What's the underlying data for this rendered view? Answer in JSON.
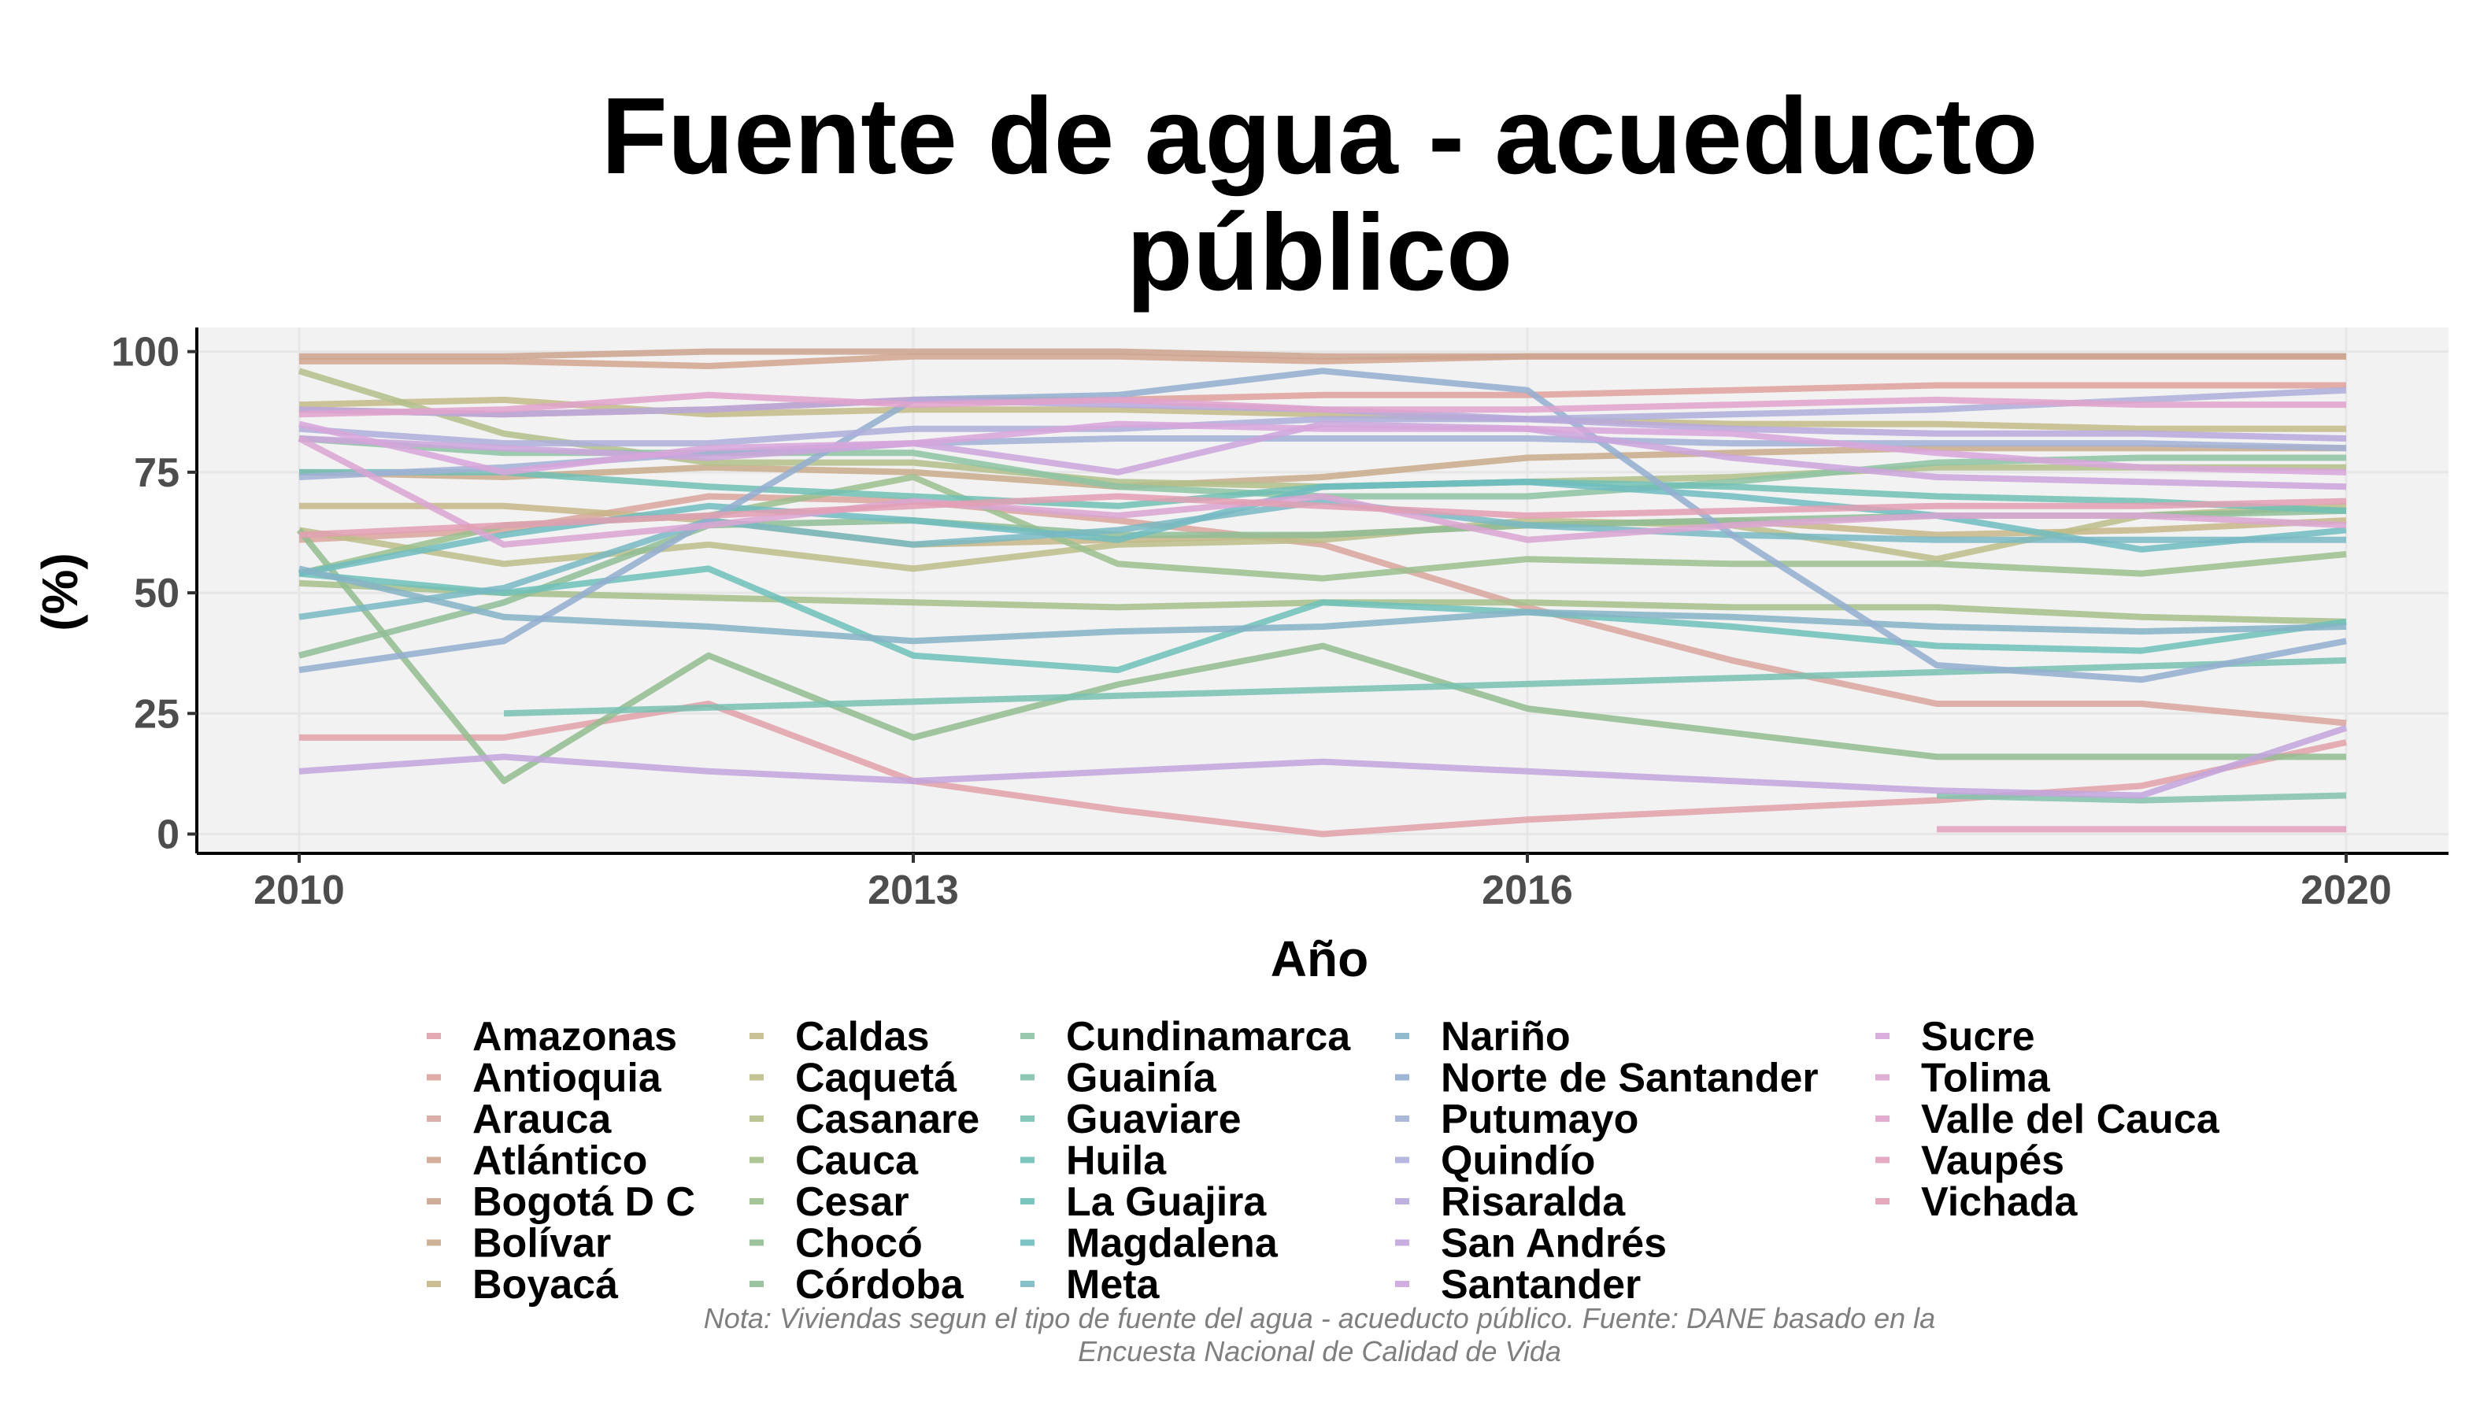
{
  "chart_data": {
    "type": "line",
    "title": "Fuente de agua - acueducto público",
    "title_lines": [
      "Fuente de agua - acueducto",
      "público"
    ],
    "xlabel": "Año",
    "ylabel": "(%)",
    "xticks": [
      2010,
      2013,
      2016,
      2020
    ],
    "yticks": [
      0,
      25,
      50,
      75,
      100
    ],
    "xlim": [
      2009.5,
      2020.5
    ],
    "ylim": [
      -4,
      105
    ],
    "grid": true,
    "legend_placement": "bottom",
    "caption_lines": [
      "Nota: Viviendas segun el tipo de fuente del agua - acueducto público. Fuente: DANE basado en la",
      "Encuesta Nacional de Calidad de Vida"
    ],
    "colors": {
      "panel_background": "#f2f2f2",
      "gridlines": "#e6e6e6",
      "axis_line": "#000000"
    },
    "series": [
      {
        "name": "Amazonas",
        "color": "#e2a0a8",
        "x": [
          2010,
          2011,
          2012,
          2013,
          2014,
          2015,
          2016,
          2017,
          2018,
          2019,
          2020
        ],
        "y": [
          20,
          20,
          27,
          11,
          5,
          0,
          3,
          5,
          7,
          10,
          19
        ]
      },
      {
        "name": "Antioquia",
        "color": "#dfa19b",
        "x": [
          2010,
          2011,
          2012,
          2013,
          2014,
          2015,
          2016,
          2017,
          2018,
          2019,
          2020
        ],
        "y": [
          88,
          87,
          88,
          90,
          90,
          91,
          91,
          92,
          93,
          93,
          93
        ]
      },
      {
        "name": "Arauca",
        "color": "#d9a59e",
        "x": [
          2010,
          2011,
          2012,
          2013,
          2014,
          2015,
          2016,
          2017,
          2018,
          2019,
          2020
        ],
        "y": [
          61,
          63,
          70,
          69,
          65,
          60,
          47,
          36,
          27,
          27,
          23
        ]
      },
      {
        "name": "Atlántico",
        "color": "#d2a48f",
        "x": [
          2010,
          2011,
          2012,
          2013,
          2014,
          2015,
          2016,
          2017,
          2018,
          2019,
          2020
        ],
        "y": [
          98,
          98,
          97,
          99,
          99,
          98,
          99,
          99,
          99,
          99,
          99
        ]
      },
      {
        "name": "Bogotá D C",
        "color": "#cca38d",
        "x": [
          2010,
          2011,
          2012,
          2013,
          2014,
          2015,
          2016,
          2017,
          2018,
          2019,
          2020
        ],
        "y": [
          99,
          99,
          100,
          100,
          100,
          99,
          99,
          99,
          99,
          99,
          99
        ]
      },
      {
        "name": "Bolívar",
        "color": "#c9aa8a",
        "x": [
          2010,
          2011,
          2012,
          2013,
          2014,
          2015,
          2016,
          2017,
          2018,
          2019,
          2020
        ],
        "y": [
          75,
          74,
          76,
          75,
          72,
          74,
          78,
          79,
          80,
          80,
          80
        ]
      },
      {
        "name": "Boyacá",
        "color": "#c7b687",
        "x": [
          2010,
          2011,
          2012,
          2013,
          2014,
          2015,
          2016,
          2017,
          2018,
          2019,
          2020
        ],
        "y": [
          68,
          68,
          65,
          60,
          61,
          62,
          64,
          65,
          62,
          63,
          65
        ]
      },
      {
        "name": "Caldas",
        "color": "#c4bb88",
        "x": [
          2010,
          2011,
          2012,
          2013,
          2014,
          2015,
          2016,
          2017,
          2018,
          2019,
          2020
        ],
        "y": [
          89,
          90,
          87,
          88,
          88,
          87,
          86,
          85,
          85,
          84,
          84
        ]
      },
      {
        "name": "Caquetá",
        "color": "#bcbd88",
        "x": [
          2010,
          2011,
          2012,
          2013,
          2014,
          2015,
          2016,
          2017,
          2018,
          2019,
          2020
        ],
        "y": [
          63,
          56,
          60,
          55,
          60,
          61,
          65,
          64,
          57,
          66,
          68
        ]
      },
      {
        "name": "Casanare",
        "color": "#b2bf89",
        "x": [
          2010,
          2011,
          2012,
          2013,
          2014,
          2015,
          2016,
          2017,
          2018,
          2019,
          2020
        ],
        "y": [
          96,
          83,
          77,
          77,
          73,
          72,
          73,
          74,
          76,
          76,
          76
        ]
      },
      {
        "name": "Cauca",
        "color": "#a6bf8b",
        "x": [
          2010,
          2011,
          2012,
          2013,
          2014,
          2015,
          2016,
          2017,
          2018,
          2019,
          2020
        ],
        "y": [
          52,
          50,
          49,
          48,
          47,
          48,
          48,
          47,
          47,
          45,
          44
        ]
      },
      {
        "name": "Cesar",
        "color": "#9bc08e",
        "x": [
          2010,
          2011,
          2012,
          2013,
          2014,
          2015,
          2016,
          2017,
          2018,
          2019,
          2020
        ],
        "y": [
          54,
          64,
          66,
          74,
          56,
          53,
          57,
          56,
          56,
          54,
          58
        ]
      },
      {
        "name": "Chocó",
        "color": "#92bd8f",
        "x": [
          2010,
          2011,
          2012,
          2013,
          2014,
          2015,
          2016,
          2017,
          2018,
          2019,
          2020
        ],
        "y": [
          63,
          11,
          37,
          20,
          31,
          39,
          26,
          21,
          16,
          16,
          16
        ]
      },
      {
        "name": "Córdoba",
        "color": "#8fbd97",
        "x": [
          2010,
          2011,
          2012,
          2013,
          2014,
          2015,
          2016,
          2017,
          2018,
          2019,
          2020
        ],
        "y": [
          37,
          48,
          64,
          65,
          62,
          62,
          64,
          65,
          66,
          66,
          67
        ]
      },
      {
        "name": "Cundinamarca",
        "color": "#8dc3a3",
        "x": [
          2010,
          2011,
          2012,
          2013,
          2014,
          2015,
          2016,
          2017,
          2018,
          2019,
          2020
        ],
        "y": [
          82,
          79,
          79,
          79,
          72,
          70,
          70,
          73,
          77,
          78,
          78
        ]
      },
      {
        "name": "Guainía",
        "color": "#82c2ac",
        "x": [
          2018,
          2019,
          2020
        ],
        "y": [
          8,
          7,
          8
        ]
      },
      {
        "name": "Guaviare",
        "color": "#78c1b2",
        "x": [
          2011,
          2020
        ],
        "y": [
          25,
          36
        ]
      },
      {
        "name": "Huila",
        "color": "#70c0b4",
        "x": [
          2010,
          2011,
          2012,
          2013,
          2014,
          2015,
          2016,
          2017,
          2018,
          2019,
          2020
        ],
        "y": [
          75,
          75,
          72,
          70,
          68,
          72,
          73,
          72,
          70,
          69,
          67
        ]
      },
      {
        "name": "La Guajira",
        "color": "#6dbfba",
        "x": [
          2010,
          2011,
          2012,
          2013,
          2014,
          2015,
          2016,
          2017,
          2018,
          2019,
          2020
        ],
        "y": [
          54,
          50,
          55,
          37,
          34,
          48,
          46,
          43,
          39,
          38,
          44
        ]
      },
      {
        "name": "Magdalena",
        "color": "#6fbcbf",
        "x": [
          2010,
          2011,
          2012,
          2013,
          2014,
          2015,
          2016,
          2017,
          2018,
          2019,
          2020
        ],
        "y": [
          54,
          62,
          68,
          65,
          61,
          72,
          73,
          70,
          66,
          59,
          63
        ]
      },
      {
        "name": "Meta",
        "color": "#78b8c3",
        "x": [
          2010,
          2011,
          2012,
          2013,
          2014,
          2015,
          2016,
          2017,
          2018,
          2019,
          2020
        ],
        "y": [
          45,
          51,
          65,
          60,
          63,
          69,
          64,
          62,
          61,
          61,
          61
        ]
      },
      {
        "name": "Nariño",
        "color": "#85b3c6",
        "x": [
          2010,
          2011,
          2012,
          2013,
          2014,
          2015,
          2016,
          2017,
          2018,
          2019,
          2020
        ],
        "y": [
          55,
          45,
          43,
          40,
          42,
          43,
          46,
          45,
          43,
          42,
          43
        ]
      },
      {
        "name": "Norte de Santander",
        "color": "#93aed0",
        "x": [
          2010,
          2011,
          2012,
          2013,
          2014,
          2015,
          2016,
          2017,
          2018,
          2019,
          2020
        ],
        "y": [
          34,
          40,
          65,
          90,
          91,
          96,
          92,
          62,
          35,
          32,
          40
        ]
      },
      {
        "name": "Putumayo",
        "color": "#a1b0d6",
        "x": [
          2010,
          2011,
          2012,
          2013,
          2014,
          2015,
          2016,
          2017,
          2018,
          2019,
          2020
        ],
        "y": [
          74,
          76,
          79,
          81,
          82,
          82,
          82,
          81,
          81,
          81,
          80
        ]
      },
      {
        "name": "Quindío",
        "color": "#aeaedb",
        "x": [
          2010,
          2011,
          2012,
          2013,
          2014,
          2015,
          2016,
          2017,
          2018,
          2019,
          2020
        ],
        "y": [
          84,
          81,
          81,
          84,
          84,
          86,
          86,
          87,
          88,
          90,
          92
        ]
      },
      {
        "name": "Risaralda",
        "color": "#b7a8dd",
        "x": [
          2010,
          2011,
          2012,
          2013,
          2014,
          2015,
          2016,
          2017,
          2018,
          2019,
          2020
        ],
        "y": [
          88,
          87,
          88,
          90,
          89,
          88,
          86,
          84,
          83,
          83,
          82
        ]
      },
      {
        "name": "San Andrés",
        "color": "#c2a4dd",
        "x": [
          2010,
          2011,
          2012,
          2013,
          2014,
          2015,
          2016,
          2017,
          2018,
          2019,
          2020
        ],
        "y": [
          13,
          16,
          13,
          11,
          13,
          15,
          13,
          11,
          9,
          8,
          22
        ]
      },
      {
        "name": "Santander",
        "color": "#cba5dc",
        "x": [
          2010,
          2011,
          2012,
          2013,
          2014,
          2015,
          2016,
          2017,
          2018,
          2019,
          2020
        ],
        "y": [
          82,
          80,
          78,
          81,
          75,
          85,
          84,
          78,
          74,
          73,
          72
        ]
      },
      {
        "name": "Sucre",
        "color": "#d8a5da",
        "x": [
          2010,
          2011,
          2012,
          2013,
          2014,
          2015,
          2016,
          2017,
          2018,
          2019,
          2020
        ],
        "y": [
          85,
          75,
          80,
          81,
          85,
          84,
          84,
          83,
          79,
          76,
          75
        ]
      },
      {
        "name": "Tolima",
        "color": "#dba4d2",
        "x": [
          2010,
          2011,
          2012,
          2013,
          2014,
          2015,
          2016,
          2017,
          2018,
          2019,
          2020
        ],
        "y": [
          82,
          60,
          64,
          69,
          66,
          70,
          61,
          64,
          66,
          66,
          64
        ]
      },
      {
        "name": "Valle del Cauca",
        "color": "#e0a2cb",
        "x": [
          2010,
          2011,
          2012,
          2013,
          2014,
          2015,
          2016,
          2017,
          2018,
          2019,
          2020
        ],
        "y": [
          87,
          88,
          91,
          89,
          90,
          88,
          88,
          89,
          90,
          89,
          89
        ]
      },
      {
        "name": "Vaupés",
        "color": "#e2a0bd",
        "x": [
          2018,
          2019,
          2020
        ],
        "y": [
          1,
          1,
          1
        ]
      },
      {
        "name": "Vichada",
        "color": "#e39fb3",
        "x": [
          2010,
          2011,
          2012,
          2013,
          2014,
          2015,
          2016,
          2017,
          2018,
          2019,
          2020
        ],
        "y": [
          62,
          64,
          66,
          68,
          70,
          68,
          66,
          67,
          68,
          68,
          69
        ]
      }
    ]
  }
}
